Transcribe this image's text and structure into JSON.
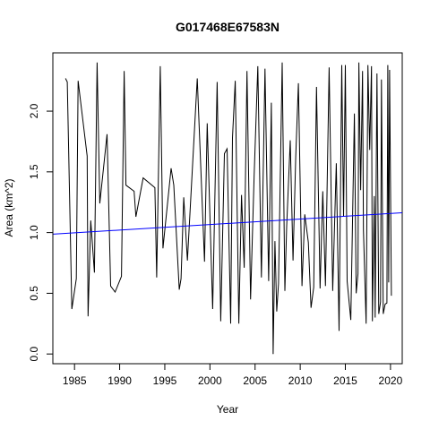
{
  "chart_data": {
    "type": "line",
    "title": "G017468E67583N",
    "xlabel": "Year",
    "ylabel": "Area (km^2)",
    "xlim": [
      1982.6,
      2021.3
    ],
    "ylim": [
      -0.08,
      2.48
    ],
    "xticks": [
      1985,
      1990,
      1995,
      2000,
      2005,
      2010,
      2015,
      2020
    ],
    "xtick_labels": [
      "1985",
      "1990",
      "1995",
      "2000",
      "2005",
      "2010",
      "2015",
      "2020"
    ],
    "yticks": [
      0.0,
      0.5,
      1.0,
      1.5,
      2.0
    ],
    "ytick_labels": [
      "0.0",
      "0.5",
      "1.0",
      "1.5",
      "2.0"
    ],
    "grid": false,
    "legend": "none",
    "series": [
      {
        "color": "#000000",
        "x": [
          1984.0,
          1984.2,
          1984.7,
          1985.2,
          1985.4,
          1986.4,
          1986.5,
          1986.8,
          1987.2,
          1987.5,
          1987.8,
          1988.6,
          1989.0,
          1989.5,
          1990.2,
          1990.5,
          1990.7,
          1991.6,
          1991.8,
          1992.6,
          1993.9,
          1994.1,
          1994.5,
          1994.8,
          1995.7,
          1996.0,
          1996.6,
          1996.8,
          1997.1,
          1997.5,
          1998.6,
          1999.4,
          1999.7,
          2000.3,
          2000.8,
          2001.2,
          2001.6,
          2001.9,
          2002.3,
          2002.5,
          2002.8,
          2003.2,
          2003.5,
          2003.8,
          2004.1,
          2004.5,
          2004.9,
          2005.3,
          2005.7,
          2006.1,
          2006.5,
          2006.8,
          2007.0,
          2007.2,
          2007.4,
          2007.6,
          2008.0,
          2008.3,
          2008.5,
          2008.9,
          2009.2,
          2009.5,
          2009.8,
          2010.2,
          2010.5,
          2010.9,
          2011.2,
          2011.5,
          2011.8,
          2012.2,
          2012.5,
          2012.8,
          2013.2,
          2013.6,
          2014.0,
          2014.3,
          2014.6,
          2014.8,
          2015.0,
          2015.2,
          2015.6,
          2016.0,
          2016.2,
          2016.4,
          2016.5,
          2016.7,
          2016.9,
          2017.0,
          2017.3,
          2017.5,
          2017.7,
          2017.9,
          2018.0,
          2018.2,
          2018.3,
          2018.5,
          2018.7,
          2018.9,
          2019.0,
          2019.2,
          2019.4,
          2019.6,
          2019.7,
          2019.8,
          2019.9,
          2020.0,
          2020.1
        ],
        "y": [
          2.27,
          2.24,
          0.37,
          0.62,
          2.25,
          1.63,
          0.31,
          1.1,
          0.67,
          2.4,
          1.24,
          1.81,
          0.56,
          0.51,
          0.64,
          2.33,
          1.39,
          1.34,
          1.13,
          1.45,
          1.37,
          0.63,
          2.37,
          0.87,
          1.53,
          1.39,
          0.53,
          0.62,
          1.29,
          0.77,
          2.27,
          0.76,
          1.9,
          0.37,
          2.24,
          0.27,
          1.65,
          1.69,
          0.25,
          1.78,
          2.25,
          0.25,
          1.31,
          0.71,
          2.33,
          0.45,
          1.47,
          2.37,
          0.63,
          2.35,
          0.6,
          2.07,
          0.0,
          0.93,
          0.35,
          0.58,
          2.4,
          0.52,
          1.05,
          1.76,
          0.77,
          1.62,
          2.23,
          0.56,
          1.15,
          0.92,
          0.38,
          0.55,
          2.2,
          0.54,
          1.34,
          0.56,
          2.36,
          0.52,
          1.57,
          0.19,
          2.38,
          1.13,
          2.38,
          0.6,
          0.28,
          1.98,
          0.5,
          0.66,
          2.4,
          1.35,
          2.33,
          1.02,
          0.25,
          2.38,
          1.68,
          2.37,
          0.27,
          1.3,
          0.3,
          2.31,
          0.33,
          0.43,
          2.26,
          0.33,
          0.41,
          0.42,
          2.38,
          0.59,
          2.34,
          1.42,
          0.48
        ]
      },
      {
        "color": "#0000ff",
        "x": [
          1982.6,
          2021.3
        ],
        "y": [
          0.987,
          1.163
        ]
      }
    ]
  }
}
